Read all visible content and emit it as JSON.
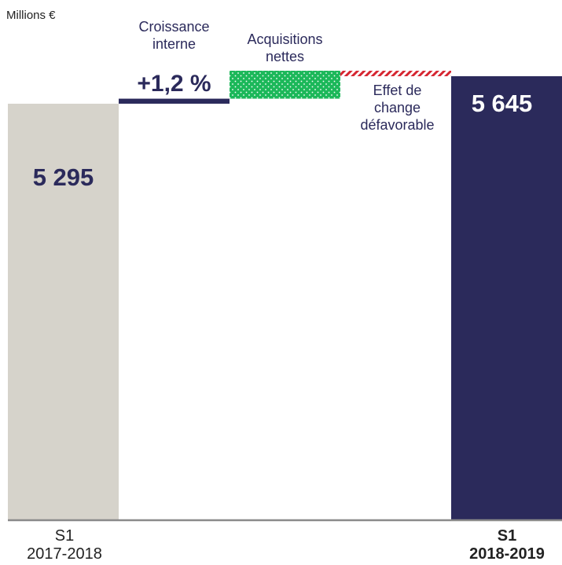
{
  "chart_data": {
    "type": "waterfall",
    "y_label": "Millions €",
    "categories": [
      "S1\n2017-2018",
      "Croissance\ninterne",
      "Acquisitions\nnettes",
      "Effet de\nchange\ndéfavorable",
      "S1\n2018-2019"
    ],
    "measure": [
      "absolute",
      "relative",
      "relative",
      "relative",
      "total"
    ],
    "values": [
      5295,
      64,
      356,
      -70,
      5645
    ],
    "value_labels": [
      "5 295",
      null,
      null,
      null,
      "5 645"
    ],
    "annotations": [
      {
        "category": 1,
        "text": "+1,2 %"
      }
    ],
    "colors": [
      "#d6d3cb",
      "#2b2a5b",
      "#1cb85a",
      "#d62631",
      "#2b2a5b"
    ],
    "ylim": [
      0,
      5700
    ]
  }
}
